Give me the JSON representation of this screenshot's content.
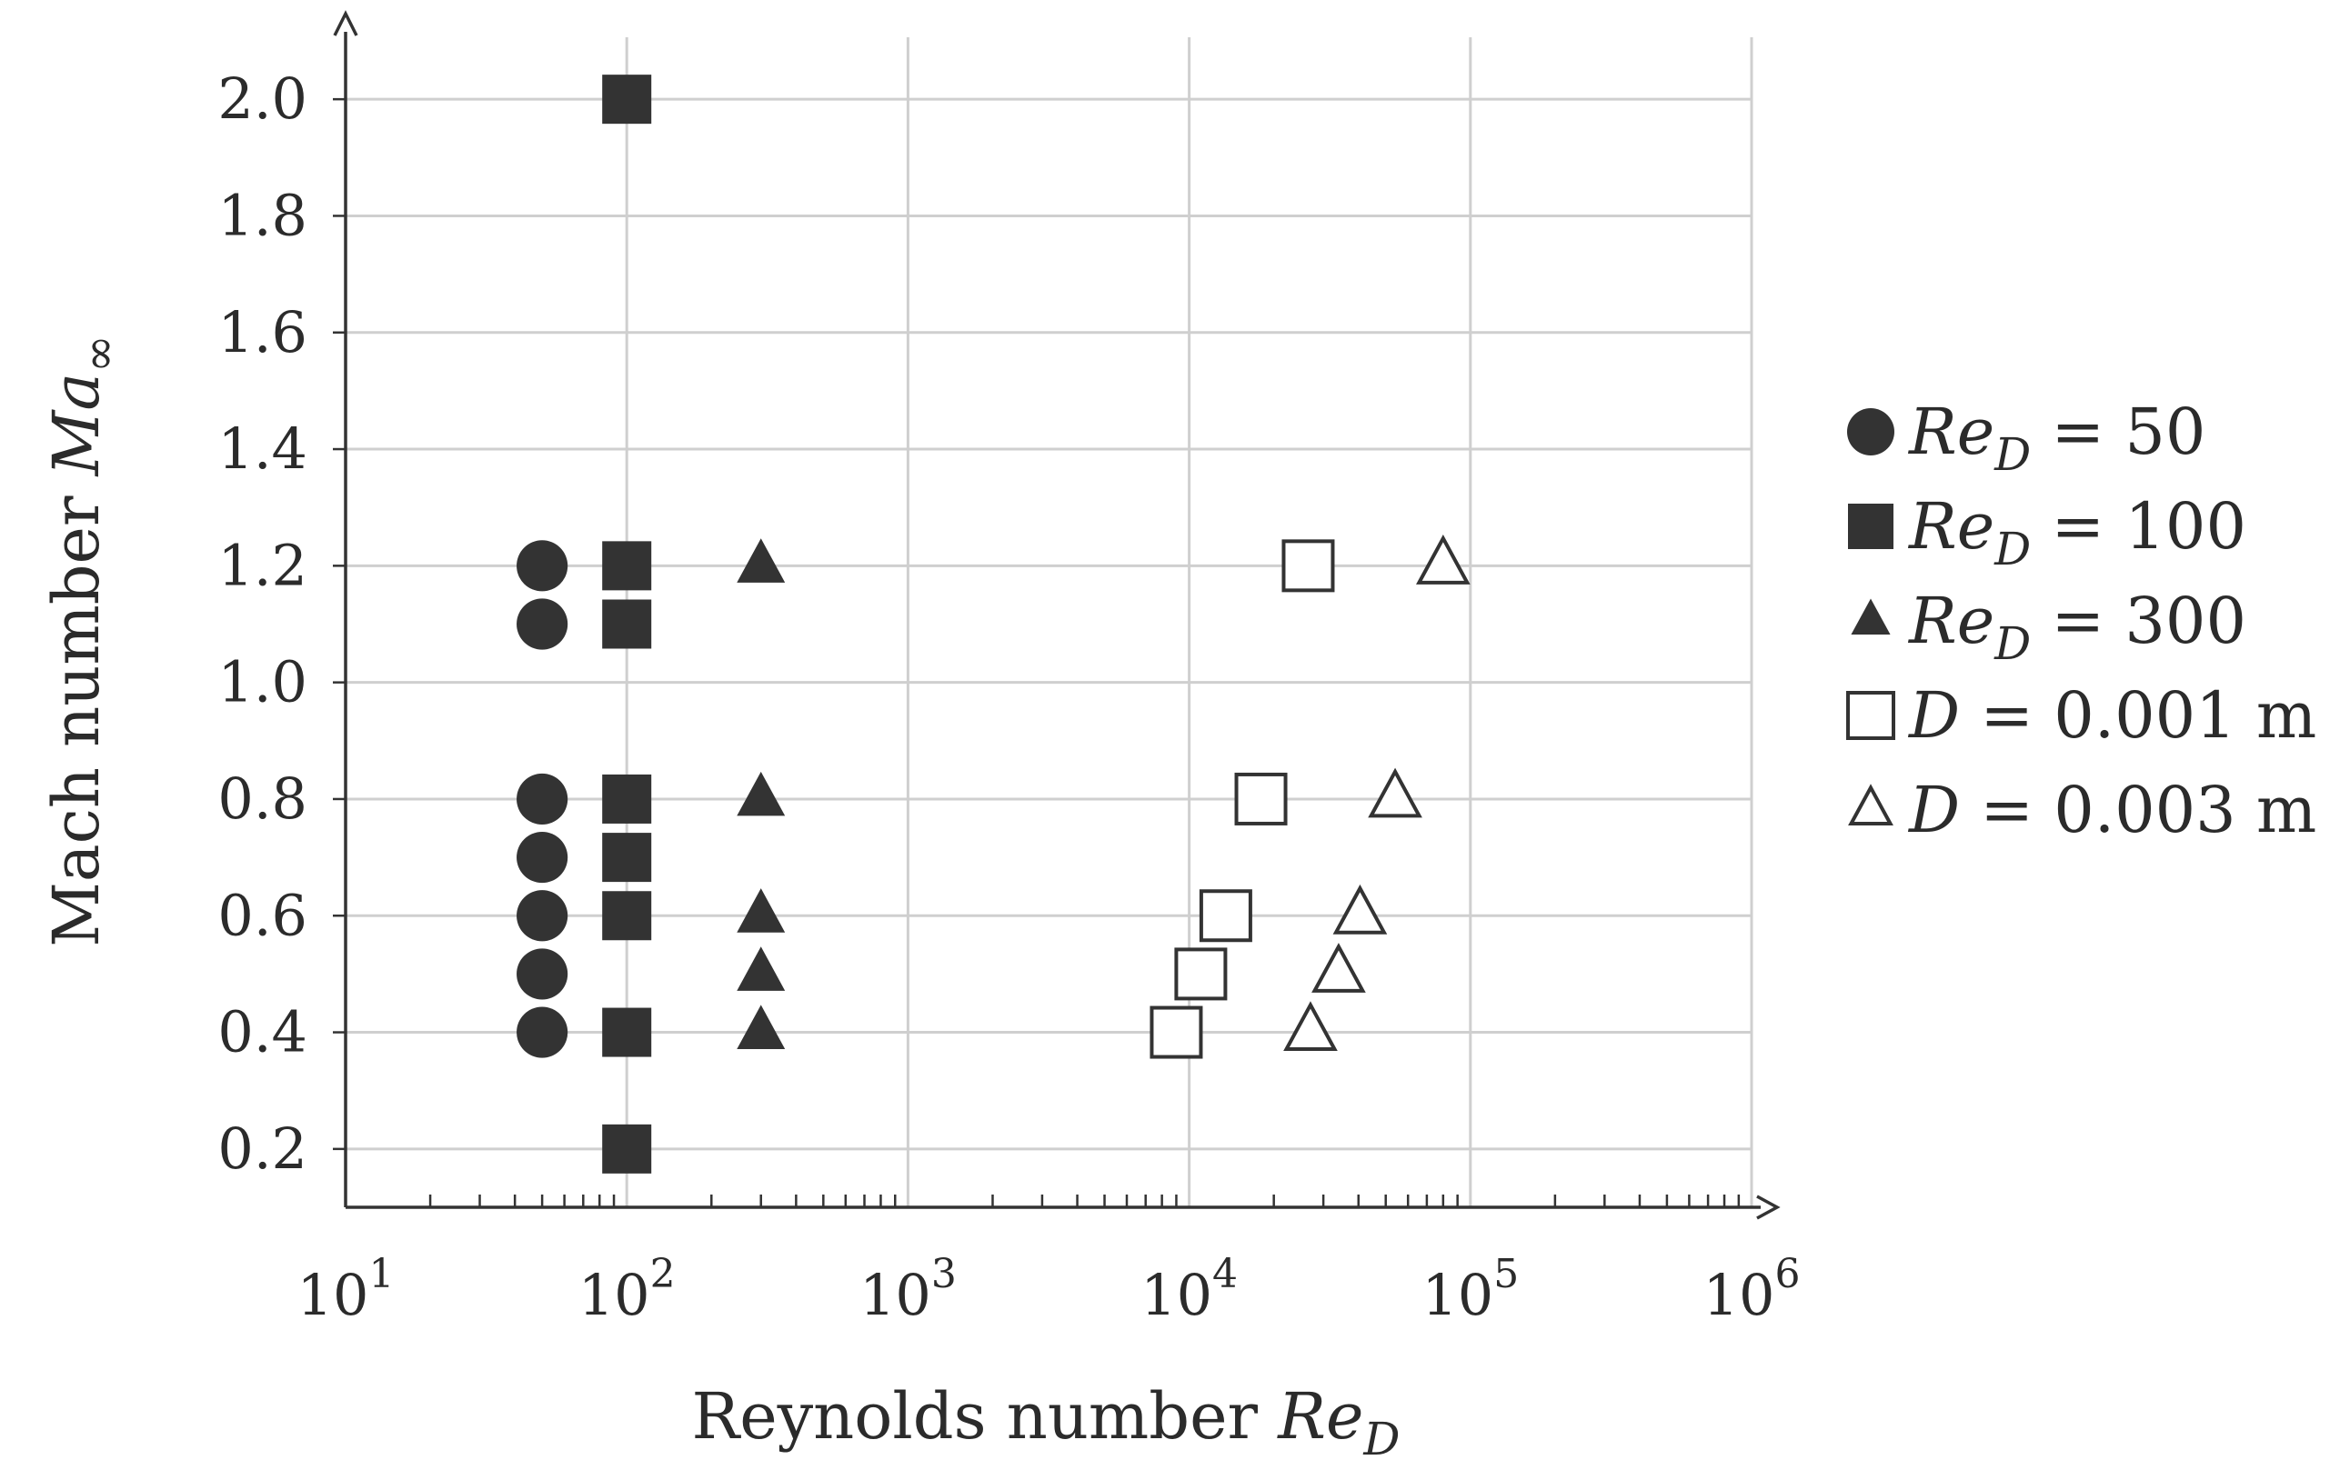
{
  "chart_data": {
    "type": "scatter",
    "xlabel": "Reynolds number",
    "xlabel_symbol": "Re",
    "xlabel_sub": "D",
    "ylabel": "Mach number",
    "ylabel_symbol": "Ma",
    "ylabel_sub": "∞",
    "x_scale": "log",
    "xlim": [
      10,
      1000000
    ],
    "ylim": [
      0.1,
      2.1
    ],
    "x_ticks": [
      {
        "value": 10,
        "base": "10",
        "exp": "1"
      },
      {
        "value": 100,
        "base": "10",
        "exp": "2"
      },
      {
        "value": 1000,
        "base": "10",
        "exp": "3"
      },
      {
        "value": 10000,
        "base": "10",
        "exp": "4"
      },
      {
        "value": 100000,
        "base": "10",
        "exp": "5"
      },
      {
        "value": 1000000,
        "base": "10",
        "exp": "6"
      }
    ],
    "y_ticks": [
      "0.2",
      "0.4",
      "0.6",
      "0.8",
      "1.0",
      "1.2",
      "1.4",
      "1.6",
      "1.8",
      "2.0"
    ],
    "grid": true,
    "legend_position": "right",
    "series": [
      {
        "name_symbol": "Re",
        "name_sub": "D",
        "name_rest": " = 50",
        "marker": "circle-filled",
        "points": [
          [
            50,
            0.4
          ],
          [
            50,
            0.5
          ],
          [
            50,
            0.6
          ],
          [
            50,
            0.7
          ],
          [
            50,
            0.8
          ],
          [
            50,
            1.1
          ],
          [
            50,
            1.2
          ]
        ]
      },
      {
        "name_symbol": "Re",
        "name_sub": "D",
        "name_rest": " = 100",
        "marker": "square-filled",
        "points": [
          [
            100,
            0.2
          ],
          [
            100,
            0.4
          ],
          [
            100,
            0.6
          ],
          [
            100,
            0.7
          ],
          [
            100,
            0.8
          ],
          [
            100,
            1.1
          ],
          [
            100,
            1.2
          ],
          [
            100,
            2.0
          ]
        ]
      },
      {
        "name_symbol": "Re",
        "name_sub": "D",
        "name_rest": " = 300",
        "marker": "triangle-filled",
        "points": [
          [
            300,
            0.4
          ],
          [
            300,
            0.5
          ],
          [
            300,
            0.6
          ],
          [
            300,
            0.8
          ],
          [
            300,
            1.2
          ]
        ]
      },
      {
        "name_symbol": "D",
        "name_sub": "",
        "name_rest": " = 0.001 m",
        "marker": "square-open",
        "points": [
          [
            9000,
            0.4
          ],
          [
            11000,
            0.5
          ],
          [
            13500,
            0.6
          ],
          [
            18000,
            0.8
          ],
          [
            26500,
            1.2
          ]
        ]
      },
      {
        "name_symbol": "D",
        "name_sub": "",
        "name_rest": " = 0.003 m",
        "marker": "triangle-open",
        "points": [
          [
            27000,
            0.4
          ],
          [
            34000,
            0.5
          ],
          [
            40500,
            0.6
          ],
          [
            54000,
            0.8
          ],
          [
            80000,
            1.2
          ]
        ]
      }
    ]
  },
  "colors": {
    "marker": "#333333",
    "grid": "#cfcfcf",
    "axis": "#333333",
    "open_fill": "#ffffff"
  }
}
